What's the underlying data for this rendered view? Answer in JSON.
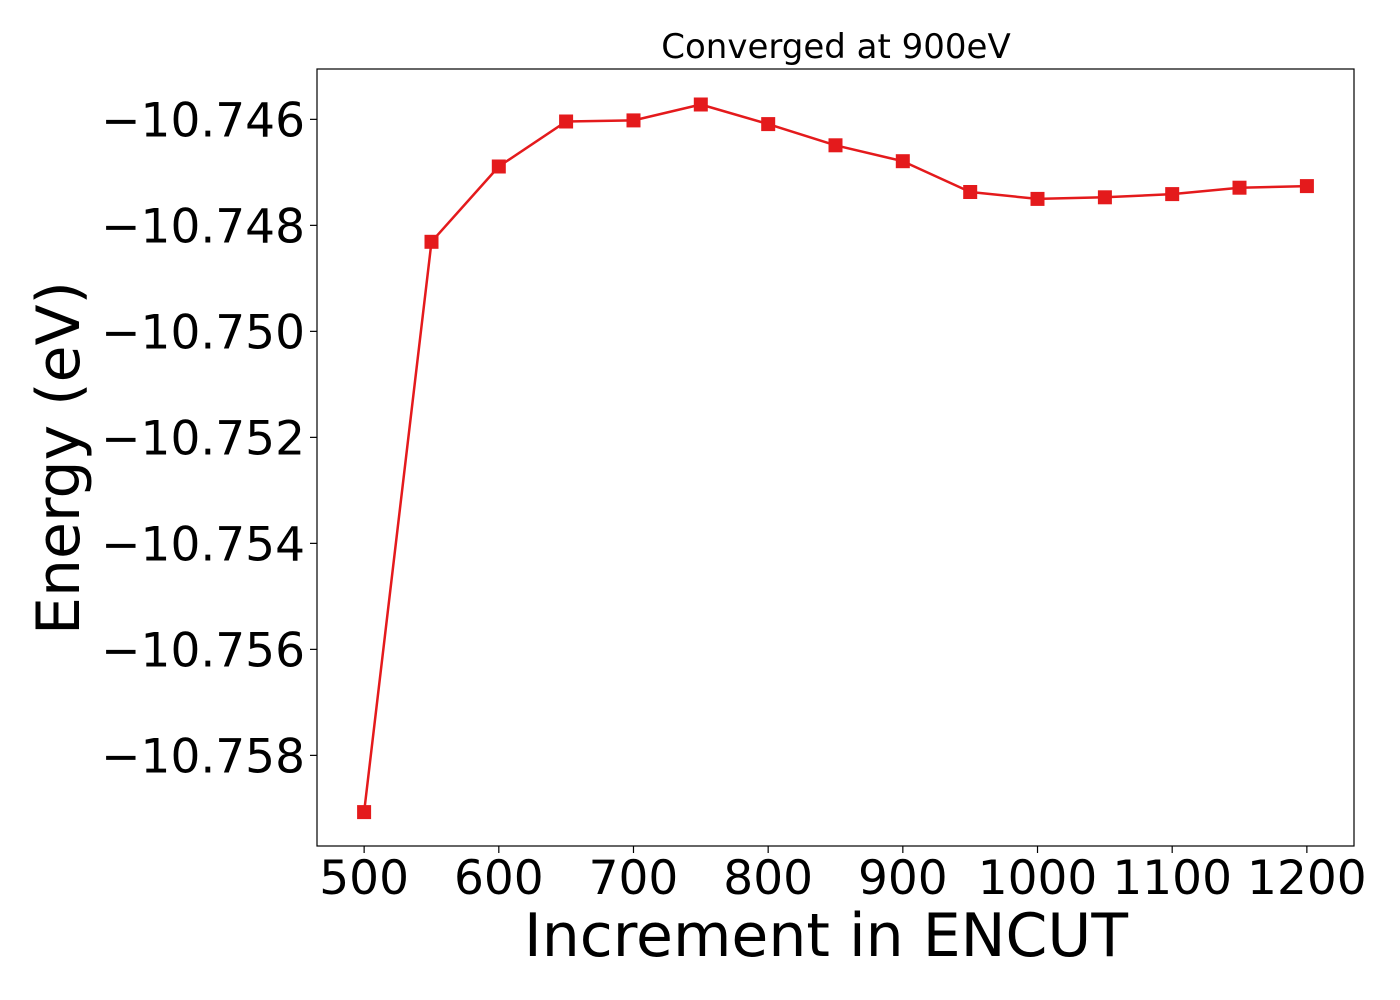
{
  "chart_data": {
    "type": "line",
    "title": "Converged at 900eV",
    "xlabel": "Increment in ENCUT",
    "ylabel": "Energy (eV)",
    "x": [
      500,
      550,
      600,
      650,
      700,
      750,
      800,
      850,
      900,
      950,
      1000,
      1050,
      1100,
      1150,
      1200
    ],
    "series": [
      {
        "values": [
          -10.75907,
          -10.74831,
          -10.74689,
          -10.74604,
          -10.74602,
          -10.74572,
          -10.74609,
          -10.74649,
          -10.74679,
          -10.74737,
          -10.7475,
          -10.74747,
          -10.74741,
          -10.74729,
          -10.74726
        ],
        "color": "#e41a1c",
        "marker": "square"
      }
    ],
    "xticks": [
      "500",
      "600",
      "700",
      "800",
      "900",
      "1000",
      "1100",
      "1200"
    ],
    "yticks": [
      "−10.746",
      "−10.748",
      "−10.750",
      "−10.752",
      "−10.754",
      "−10.756",
      "−10.758"
    ],
    "xlim": [
      465,
      1235
    ],
    "ylim": [
      -10.75971,
      -10.74505
    ],
    "grid": false,
    "legend": "none"
  }
}
